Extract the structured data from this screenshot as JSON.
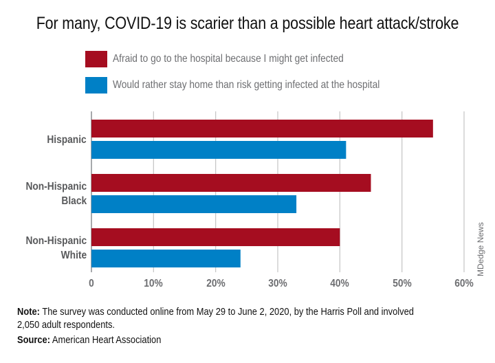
{
  "chart_data": {
    "type": "bar",
    "orientation": "horizontal",
    "title": "For many, COVID-19 is scarier than a possible heart attack/stroke",
    "categories": [
      "Hispanic",
      "Non-Hispanic Black",
      "Non-Hispanic White"
    ],
    "category_label_lines": [
      [
        "Hispanic"
      ],
      [
        "Non-Hispanic",
        "Black"
      ],
      [
        "Non-Hispanic",
        "White"
      ]
    ],
    "series": [
      {
        "name": "Afraid to go to the hospital because I might get infected",
        "color": "#A50D20",
        "values": [
          55,
          45,
          40
        ]
      },
      {
        "name": "Would rather stay home than risk getting infected at the hospital",
        "color": "#0080C6",
        "values": [
          41,
          33,
          24
        ]
      }
    ],
    "xlabel": "",
    "ylabel": "",
    "xlim": [
      0,
      60
    ],
    "x_ticks": [
      0,
      10,
      20,
      30,
      40,
      50,
      60
    ],
    "x_tick_labels": [
      "0",
      "10%",
      "20%",
      "30%",
      "40%",
      "50%",
      "60%"
    ],
    "grid": true,
    "legend_position": "top"
  },
  "credit": "MDedge News",
  "note": {
    "label": "Note:",
    "text": " The survey was conducted online from May 29 to June 2, 2020, by the Harris Poll and involved 2,050 adult respondents."
  },
  "source": {
    "label": "Source:",
    "text": " American Heart Association"
  }
}
